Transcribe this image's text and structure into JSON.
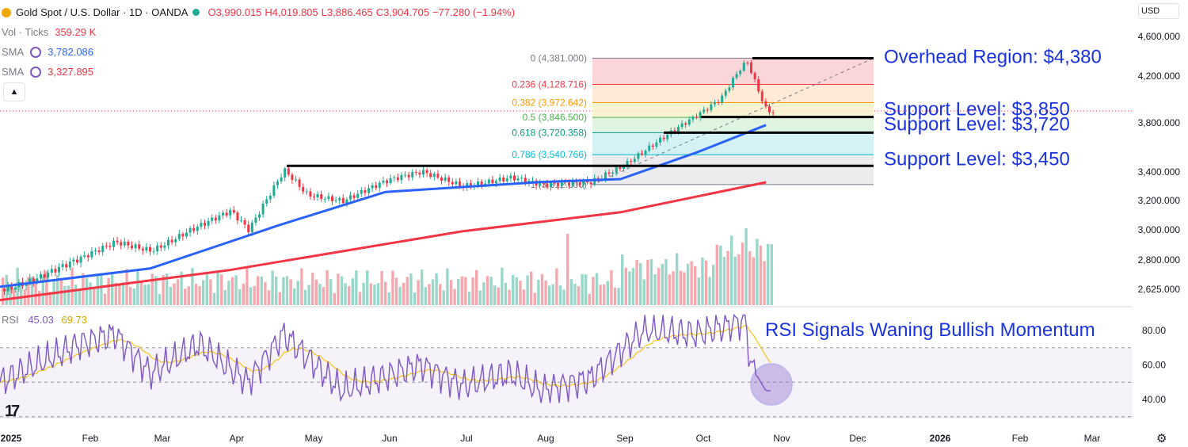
{
  "header": {
    "title": "Gold Spot / U.S. Dollar · 1D · OANDA",
    "open": "O3,990.015",
    "high": "H4,019.805",
    "low": "L3,886.465",
    "close": "C3,904.705",
    "change": "−77.280 (−1.94%)",
    "vol_label": "Vol · Ticks",
    "vol_value": "359.29 K",
    "sma1_label": "SMA",
    "sma1_value": "3,782.086",
    "sma2_label": "SMA",
    "sma2_value": "3,327.895",
    "currency": "USD"
  },
  "rsi_legend": {
    "label": "RSI",
    "value": "45.03",
    "ma_value": "69.73"
  },
  "colors": {
    "up": "#22ab94",
    "down": "#f23645",
    "sma_fast": "#2962ff",
    "sma_slow": "#f23645",
    "rsi": "#7e57c2",
    "rsi_ma": "#f5c518",
    "annotation": "#1a33e0"
  },
  "chart_data": [
    {
      "type": "candlestick",
      "title": "Gold Spot / U.S. Dollar · 1D · OANDA",
      "y_axis_ticks": [
        "4,600.000",
        "4,200.000",
        "3,800.000",
        "3,400.000",
        "3,200.000",
        "3,000.000",
        "2,800.000",
        "2,625.000"
      ],
      "x_axis_ticks": [
        "2025",
        "Feb",
        "Mar",
        "Apr",
        "May",
        "Jun",
        "Jul",
        "Aug",
        "Sep",
        "Oct",
        "Nov",
        "Dec",
        "2026",
        "Feb",
        "Mar"
      ],
      "price_path": [
        {
          "x": "2025-01-01",
          "y": 2625
        },
        {
          "x": "2025-01-15",
          "y": 2690
        },
        {
          "x": "2025-02-01",
          "y": 2800
        },
        {
          "x": "2025-02-15",
          "y": 2920
        },
        {
          "x": "2025-03-01",
          "y": 2870
        },
        {
          "x": "2025-03-15",
          "y": 2990
        },
        {
          "x": "2025-04-01",
          "y": 3120
        },
        {
          "x": "2025-04-08",
          "y": 2990
        },
        {
          "x": "2025-04-22",
          "y": 3420
        },
        {
          "x": "2025-05-01",
          "y": 3250
        },
        {
          "x": "2025-05-15",
          "y": 3200
        },
        {
          "x": "2025-06-01",
          "y": 3330
        },
        {
          "x": "2025-06-15",
          "y": 3400
        },
        {
          "x": "2025-07-01",
          "y": 3310
        },
        {
          "x": "2025-07-20",
          "y": 3360
        },
        {
          "x": "2025-08-01",
          "y": 3300
        },
        {
          "x": "2025-08-20",
          "y": 3330
        },
        {
          "x": "2025-09-01",
          "y": 3450
        },
        {
          "x": "2025-09-15",
          "y": 3650
        },
        {
          "x": "2025-10-01",
          "y": 3860
        },
        {
          "x": "2025-10-10",
          "y": 4000
        },
        {
          "x": "2025-10-20",
          "y": 4360
        },
        {
          "x": "2025-10-24",
          "y": 4110
        },
        {
          "x": "2025-10-28",
          "y": 3905
        }
      ],
      "series": [
        {
          "name": "SMA",
          "value": "3,782.086",
          "points": [
            {
              "x": "2025-01-01",
              "y": 2640
            },
            {
              "x": "2025-03-01",
              "y": 2750
            },
            {
              "x": "2025-04-20",
              "y": 3030
            },
            {
              "x": "2025-06-01",
              "y": 3260
            },
            {
              "x": "2025-08-01",
              "y": 3330
            },
            {
              "x": "2025-09-01",
              "y": 3350
            },
            {
              "x": "2025-10-01",
              "y": 3560
            },
            {
              "x": "2025-10-28",
              "y": 3782
            }
          ]
        },
        {
          "name": "SMA",
          "value": "3,327.895",
          "points": [
            {
              "x": "2025-01-01",
              "y": 2560
            },
            {
              "x": "2025-04-01",
              "y": 2740
            },
            {
              "x": "2025-07-01",
              "y": 2990
            },
            {
              "x": "2025-09-01",
              "y": 3120
            },
            {
              "x": "2025-10-28",
              "y": 3328
            }
          ]
        }
      ],
      "fibonacci": [
        {
          "label": "0 (4,381.000)",
          "value": 4381.0
        },
        {
          "label": "0.236 (4,128.716)",
          "value": 4128.716
        },
        {
          "label": "0.382 (3,972.642)",
          "value": 3972.642
        },
        {
          "label": "0.5 (3,846.500)",
          "value": 3846.5
        },
        {
          "label": "0.618 (3,720.358)",
          "value": 3720.358
        },
        {
          "label": "0.786 (3,540.766)",
          "value": 3540.766
        },
        {
          "label": "1 (3,312.000)",
          "value": 3312.0
        }
      ],
      "annotations": [
        {
          "text": "Overhead Region: $4,380",
          "value": 4380
        },
        {
          "text": "Support Level: $3,850",
          "value": 3850
        },
        {
          "text": "Support Level: $3,720",
          "value": 3720
        },
        {
          "text": "Support Level: $3,450",
          "value": 3450
        }
      ],
      "volume_label": "Vol · Ticks",
      "volume_last": "359.29 K"
    },
    {
      "type": "line",
      "title": "RSI",
      "y_axis_ticks": [
        "80.00",
        "60.00",
        "40.00"
      ],
      "band": [
        30,
        70
      ],
      "series": [
        {
          "name": "RSI",
          "value": "45.03"
        },
        {
          "name": "RSI MA",
          "value": "69.73"
        }
      ],
      "rsi_path": [
        {
          "x": "2025-01-01",
          "y": 50
        },
        {
          "x": "2025-02-01",
          "y": 72
        },
        {
          "x": "2025-02-15",
          "y": 78
        },
        {
          "x": "2025-03-01",
          "y": 55
        },
        {
          "x": "2025-03-20",
          "y": 72
        },
        {
          "x": "2025-04-08",
          "y": 50
        },
        {
          "x": "2025-04-22",
          "y": 78
        },
        {
          "x": "2025-05-15",
          "y": 45
        },
        {
          "x": "2025-06-15",
          "y": 60
        },
        {
          "x": "2025-07-01",
          "y": 48
        },
        {
          "x": "2025-07-20",
          "y": 55
        },
        {
          "x": "2025-08-01",
          "y": 45
        },
        {
          "x": "2025-08-20",
          "y": 52
        },
        {
          "x": "2025-09-10",
          "y": 80
        },
        {
          "x": "2025-10-01",
          "y": 78
        },
        {
          "x": "2025-10-20",
          "y": 86
        },
        {
          "x": "2025-10-22",
          "y": 60
        },
        {
          "x": "2025-10-28",
          "y": 45
        }
      ],
      "annotation": "RSI Signals Waning Bullish Momentum"
    }
  ]
}
